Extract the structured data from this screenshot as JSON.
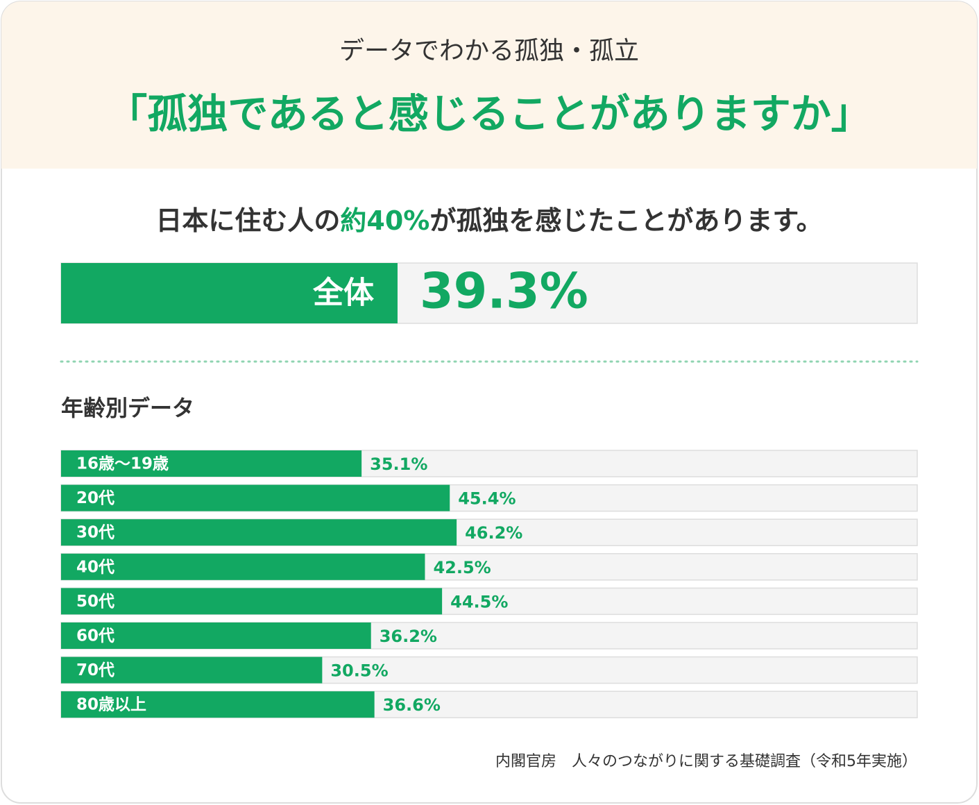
{
  "header": {
    "kicker": "データでわかる孤独・孤立",
    "title": "「孤独であると感じることがありますか」"
  },
  "summary": {
    "parts": [
      "日本に住む人の",
      "約40%",
      "が孤独を感じたことがあります。"
    ]
  },
  "chart_data": [
    {
      "type": "bar",
      "categories": [
        "全体"
      ],
      "values": [
        39.3
      ],
      "value_labels": [
        "39.3%"
      ],
      "xlim": [
        0,
        100
      ],
      "color": "#12a862"
    },
    {
      "type": "bar",
      "title": "年齢別データ",
      "categories": [
        "16歳〜19歳",
        "20代",
        "30代",
        "40代",
        "50代",
        "60代",
        "70代",
        "80歳以上"
      ],
      "values": [
        35.1,
        45.4,
        46.2,
        42.5,
        44.5,
        36.2,
        30.5,
        36.6
      ],
      "value_labels": [
        "35.1%",
        "45.4%",
        "46.2%",
        "42.5%",
        "44.5%",
        "36.2%",
        "30.5%",
        "36.6%"
      ],
      "xlim": [
        0,
        100
      ],
      "color": "#12a862"
    }
  ],
  "source": "内閣官房　人々のつながりに関する基礎調査（令和5年実施）"
}
